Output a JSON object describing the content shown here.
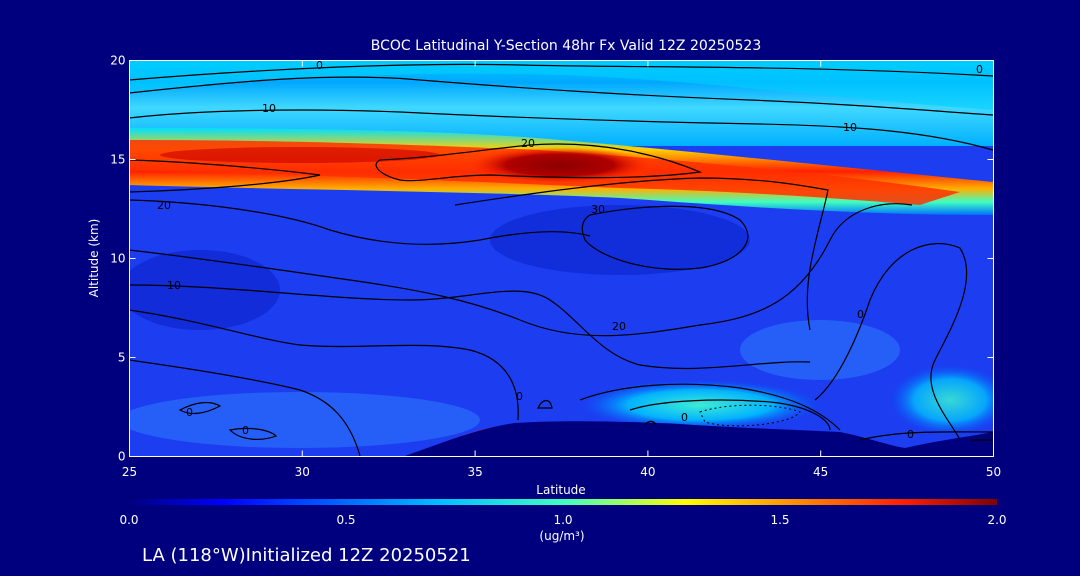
{
  "chart_data": {
    "type": "heatmap",
    "title": "BCOC Latitudinal Y-Section 48hr  Fx Valid 12Z 20250523",
    "xlabel": "Latitude",
    "ylabel": "Altitude (km)",
    "xlim": [
      25,
      50
    ],
    "ylim": [
      0,
      20
    ],
    "x_ticks": [
      "25",
      "30",
      "35",
      "40",
      "45",
      "50"
    ],
    "y_ticks": [
      "0",
      "5",
      "10",
      "15",
      "20"
    ],
    "colorbar": {
      "range": [
        0.0,
        2.0
      ],
      "ticks": [
        "0.0",
        "0.5",
        "1.0",
        "1.5",
        "2.0"
      ],
      "unit": "(ug/m³)"
    },
    "plume_core": {
      "lat": [
        25,
        50
      ],
      "alt": [
        13.5,
        15.5
      ],
      "max_value": 2.0,
      "max_lat": 37.5,
      "max_alt": 14.5
    },
    "contour_labels": [
      "0",
      "0",
      "10",
      "10",
      "20",
      "20",
      "30",
      "20",
      "10",
      "0",
      "0",
      "0",
      "0",
      "0",
      "0"
    ]
  },
  "footer": {
    "caption": "LA (118°W)Initialized 12Z 20250521"
  },
  "colors": {
    "background": "#00007f",
    "text": "#ffffff",
    "contour": "#000000"
  }
}
